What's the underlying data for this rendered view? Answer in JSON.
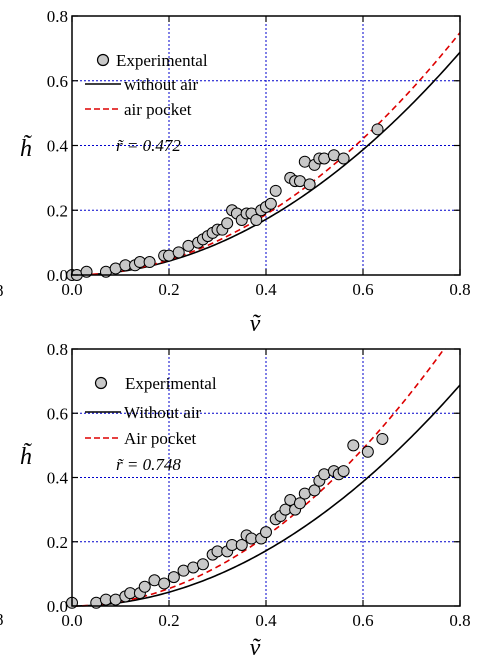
{
  "chart_data": [
    {
      "type": "scatter",
      "xlabel": "ṽ",
      "ylabel": "h̃",
      "xlim": [
        0.0,
        0.8
      ],
      "ylim": [
        0.0,
        0.8
      ],
      "x_ticks": [
        "0.0",
        "0.2",
        "0.4",
        "0.6",
        "0.8"
      ],
      "y_ticks": [
        "0.0",
        "0.2",
        "0.4",
        "0.6",
        "0.8"
      ],
      "grid": true,
      "legend_position": "top-left",
      "annotation": "r̃ = 0.472",
      "stray_label": "8",
      "legend": [
        "Experimental",
        "without air",
        "air  pocket"
      ],
      "colors": {
        "experimental_fill": "#c8c8c8",
        "without_air": "#000000",
        "air_pocket": "#dd0000",
        "grid": "#0000cc"
      },
      "series": [
        {
          "name": "Experimental",
          "kind": "scatter",
          "points": [
            [
              0.0,
              0.0
            ],
            [
              0.01,
              0.0
            ],
            [
              0.03,
              0.01
            ],
            [
              0.07,
              0.01
            ],
            [
              0.09,
              0.02
            ],
            [
              0.11,
              0.03
            ],
            [
              0.13,
              0.03
            ],
            [
              0.14,
              0.04
            ],
            [
              0.16,
              0.04
            ],
            [
              0.19,
              0.06
            ],
            [
              0.2,
              0.06
            ],
            [
              0.22,
              0.07
            ],
            [
              0.24,
              0.09
            ],
            [
              0.26,
              0.1
            ],
            [
              0.27,
              0.11
            ],
            [
              0.28,
              0.12
            ],
            [
              0.29,
              0.13
            ],
            [
              0.3,
              0.14
            ],
            [
              0.31,
              0.14
            ],
            [
              0.32,
              0.16
            ],
            [
              0.33,
              0.2
            ],
            [
              0.34,
              0.19
            ],
            [
              0.35,
              0.17
            ],
            [
              0.36,
              0.19
            ],
            [
              0.37,
              0.19
            ],
            [
              0.38,
              0.17
            ],
            [
              0.39,
              0.2
            ],
            [
              0.4,
              0.21
            ],
            [
              0.41,
              0.22
            ],
            [
              0.42,
              0.26
            ],
            [
              0.45,
              0.3
            ],
            [
              0.46,
              0.29
            ],
            [
              0.47,
              0.29
            ],
            [
              0.48,
              0.35
            ],
            [
              0.49,
              0.28
            ],
            [
              0.5,
              0.34
            ],
            [
              0.51,
              0.36
            ],
            [
              0.52,
              0.36
            ],
            [
              0.54,
              0.37
            ],
            [
              0.56,
              0.36
            ],
            [
              0.63,
              0.45
            ]
          ]
        },
        {
          "name": "without air",
          "kind": "curve",
          "coef": 1.075,
          "exp": 2.0
        },
        {
          "name": "air  pocket",
          "kind": "curve",
          "coef": 1.17,
          "exp": 2.0
        }
      ]
    },
    {
      "type": "scatter",
      "xlabel": "ṽ",
      "ylabel": "h̃",
      "xlim": [
        0.0,
        0.8
      ],
      "ylim": [
        0.0,
        0.8
      ],
      "x_ticks": [
        "0.0",
        "0.2",
        "0.4",
        "0.6",
        "0.8"
      ],
      "y_ticks": [
        "0.0",
        "0.2",
        "0.4",
        "0.6",
        "0.8"
      ],
      "grid": true,
      "legend_position": "top-left",
      "annotation": "r̃ = 0.748",
      "stray_label": "8",
      "legend": [
        "Experimental",
        "Without air",
        "Air pocket"
      ],
      "colors": {
        "experimental_fill": "#c8c8c8",
        "without_air": "#000000",
        "air_pocket": "#dd0000",
        "grid": "#0000cc"
      },
      "series": [
        {
          "name": "Experimental",
          "kind": "scatter",
          "points": [
            [
              0.0,
              0.01
            ],
            [
              0.05,
              0.01
            ],
            [
              0.07,
              0.02
            ],
            [
              0.09,
              0.02
            ],
            [
              0.11,
              0.03
            ],
            [
              0.12,
              0.04
            ],
            [
              0.14,
              0.04
            ],
            [
              0.15,
              0.06
            ],
            [
              0.17,
              0.08
            ],
            [
              0.19,
              0.07
            ],
            [
              0.21,
              0.09
            ],
            [
              0.23,
              0.11
            ],
            [
              0.25,
              0.12
            ],
            [
              0.27,
              0.13
            ],
            [
              0.29,
              0.16
            ],
            [
              0.3,
              0.17
            ],
            [
              0.32,
              0.17
            ],
            [
              0.33,
              0.19
            ],
            [
              0.35,
              0.19
            ],
            [
              0.36,
              0.22
            ],
            [
              0.37,
              0.21
            ],
            [
              0.39,
              0.21
            ],
            [
              0.4,
              0.23
            ],
            [
              0.42,
              0.27
            ],
            [
              0.43,
              0.28
            ],
            [
              0.44,
              0.3
            ],
            [
              0.45,
              0.33
            ],
            [
              0.46,
              0.3
            ],
            [
              0.47,
              0.32
            ],
            [
              0.48,
              0.35
            ],
            [
              0.5,
              0.36
            ],
            [
              0.51,
              0.39
            ],
            [
              0.52,
              0.41
            ],
            [
              0.54,
              0.42
            ],
            [
              0.55,
              0.41
            ],
            [
              0.56,
              0.42
            ],
            [
              0.58,
              0.5
            ],
            [
              0.61,
              0.48
            ],
            [
              0.64,
              0.52
            ]
          ]
        },
        {
          "name": "Without air",
          "kind": "curve",
          "coef": 1.075,
          "exp": 2.0
        },
        {
          "name": "Air pocket",
          "kind": "curve",
          "coef": 1.36,
          "exp": 2.0
        }
      ]
    }
  ]
}
